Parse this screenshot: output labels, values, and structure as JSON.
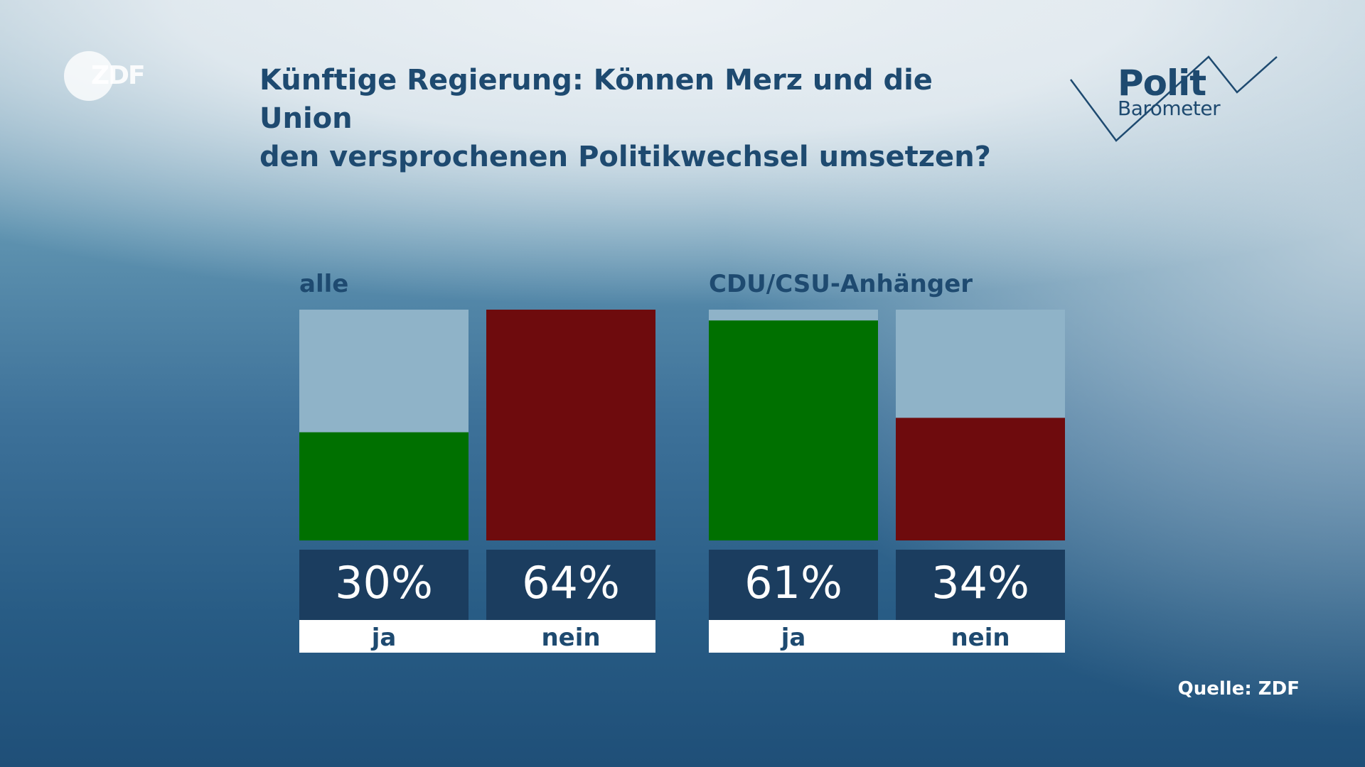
{
  "title": {
    "line1": "Künftige Regierung: Können Merz und die Union",
    "line2": "den versprochenen Politikwechsel umsetzen?"
  },
  "logos": {
    "broadcaster": "ZDF",
    "program_line1": "Polit",
    "program_line2": "Barometer"
  },
  "source": "Quelle: ZDF",
  "colors": {
    "ja": "#007000",
    "nein": "#6e0b0d",
    "track": "#8fb3c8",
    "value_box": "#1b3d5f",
    "label_strip": "#ffffff",
    "text_dark": "#1e4a70"
  },
  "chart_data": {
    "type": "bar",
    "title": "Künftige Regierung: Können Merz und die Union den versprochenen Politikwechsel umsetzen?",
    "ylim": [
      0,
      64
    ],
    "groups": [
      {
        "label": "alle",
        "bars": [
          {
            "category": "ja",
            "value": 30,
            "display": "30%"
          },
          {
            "category": "nein",
            "value": 64,
            "display": "64%"
          }
        ]
      },
      {
        "label": "CDU/CSU-Anhänger",
        "bars": [
          {
            "category": "ja",
            "value": 61,
            "display": "61%"
          },
          {
            "category": "nein",
            "value": 34,
            "display": "34%"
          }
        ]
      }
    ]
  }
}
